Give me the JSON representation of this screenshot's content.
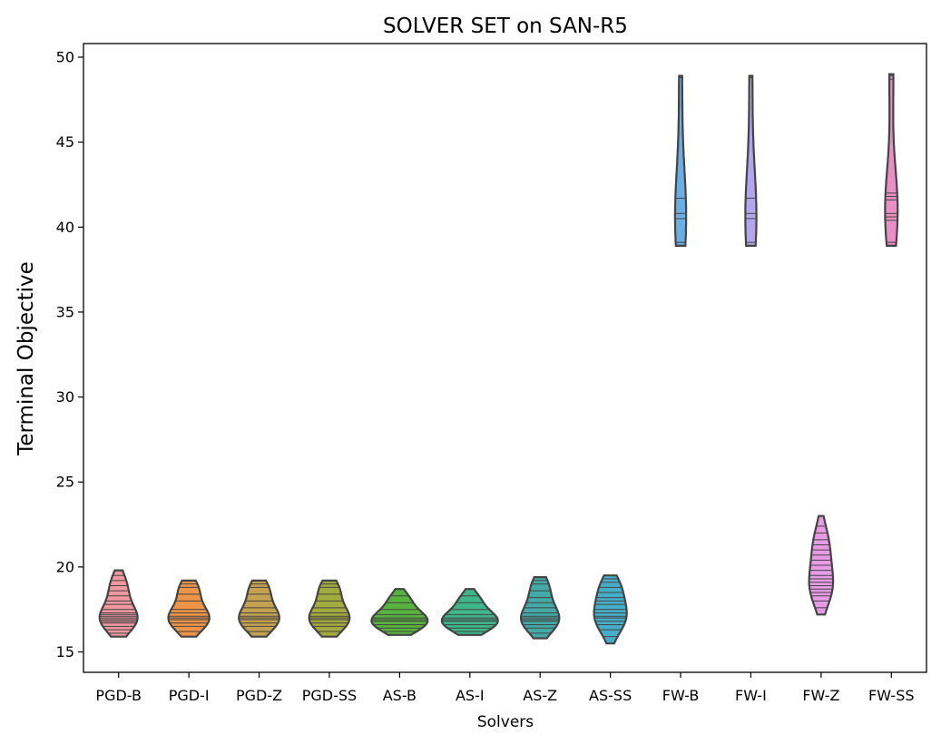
{
  "chart_data": {
    "type": "violin",
    "title": "SOLVER SET on SAN-R5",
    "xlabel": "Solvers",
    "ylabel": "Terminal Objective",
    "ylim": [
      13.8,
      50.8
    ],
    "yticks": [
      15,
      20,
      25,
      30,
      35,
      40,
      45,
      50
    ],
    "grid": false,
    "legend": "none",
    "categories": [
      "PGD-B",
      "PGD-I",
      "PGD-Z",
      "PGD-SS",
      "AS-B",
      "AS-I",
      "AS-Z",
      "AS-SS",
      "FW-B",
      "FW-I",
      "FW-Z",
      "FW-SS"
    ],
    "series": [
      {
        "color": "#f0979f",
        "min": 15.9,
        "max": 19.8,
        "points": [
          16.1,
          16.3,
          16.5,
          16.7,
          16.8,
          16.9,
          17.0,
          17.1,
          17.2,
          17.3,
          17.5,
          17.8,
          18.0,
          18.3,
          18.6,
          18.9,
          19.2,
          19.5
        ]
      },
      {
        "color": "#ee9449",
        "min": 15.9,
        "max": 19.2,
        "points": [
          16.2,
          16.5,
          16.7,
          16.9,
          17.0,
          17.1,
          17.3,
          17.5,
          18.0,
          18.4,
          18.8,
          19.0
        ]
      },
      {
        "color": "#c5a251",
        "min": 15.9,
        "max": 19.2,
        "points": [
          16.2,
          16.5,
          16.7,
          16.9,
          17.0,
          17.1,
          17.3,
          17.6,
          18.0,
          18.4,
          18.8,
          19.0
        ]
      },
      {
        "color": "#a3aa3e",
        "min": 15.9,
        "max": 19.2,
        "points": [
          16.2,
          16.5,
          16.7,
          16.9,
          17.0,
          17.1,
          17.3,
          17.6,
          18.0,
          18.4,
          18.8,
          19.0
        ]
      },
      {
        "color": "#58b33e",
        "min": 16.0,
        "max": 18.7,
        "points": [
          16.2,
          16.4,
          16.6,
          16.8,
          16.9,
          17.0,
          17.2,
          17.5,
          17.9,
          18.3
        ]
      },
      {
        "color": "#3fb58c",
        "min": 16.0,
        "max": 18.7,
        "points": [
          16.2,
          16.4,
          16.6,
          16.8,
          16.9,
          17.0,
          17.2,
          17.5,
          17.9,
          18.3
        ]
      },
      {
        "color": "#44aaa8",
        "min": 15.8,
        "max": 19.4,
        "points": [
          16.1,
          16.4,
          16.6,
          16.8,
          16.9,
          17.0,
          17.1,
          17.3,
          17.6,
          17.9,
          18.2,
          18.6,
          19.0,
          19.2
        ]
      },
      {
        "color": "#46aec8",
        "min": 15.5,
        "max": 19.5,
        "points": [
          15.9,
          16.3,
          16.6,
          16.8,
          17.0,
          17.1,
          17.3,
          17.5,
          17.8,
          18.0,
          18.2,
          18.5,
          18.8,
          19.1,
          19.3
        ]
      },
      {
        "color": "#6aaee4",
        "min": 38.9,
        "max": 48.9,
        "points": [
          39.1,
          40.5,
          40.8,
          41.7,
          48.8
        ]
      },
      {
        "color": "#b3a6ee",
        "min": 38.9,
        "max": 48.9,
        "points": [
          39.1,
          40.5,
          40.8,
          41.7,
          48.8
        ]
      },
      {
        "color": "#e79ae6",
        "min": 17.2,
        "max": 23.0,
        "points": [
          17.6,
          18.0,
          18.3,
          18.5,
          18.7,
          18.9,
          19.1,
          19.3,
          19.5,
          19.8,
          20.1,
          20.4,
          20.7,
          21.0,
          21.3,
          21.6,
          22.0,
          22.4
        ]
      },
      {
        "color": "#ea8fc6",
        "min": 38.9,
        "max": 49.0,
        "points": [
          39.1,
          40.4,
          40.6,
          40.8,
          41.6,
          41.8,
          42.0,
          48.7,
          48.9
        ]
      }
    ]
  }
}
